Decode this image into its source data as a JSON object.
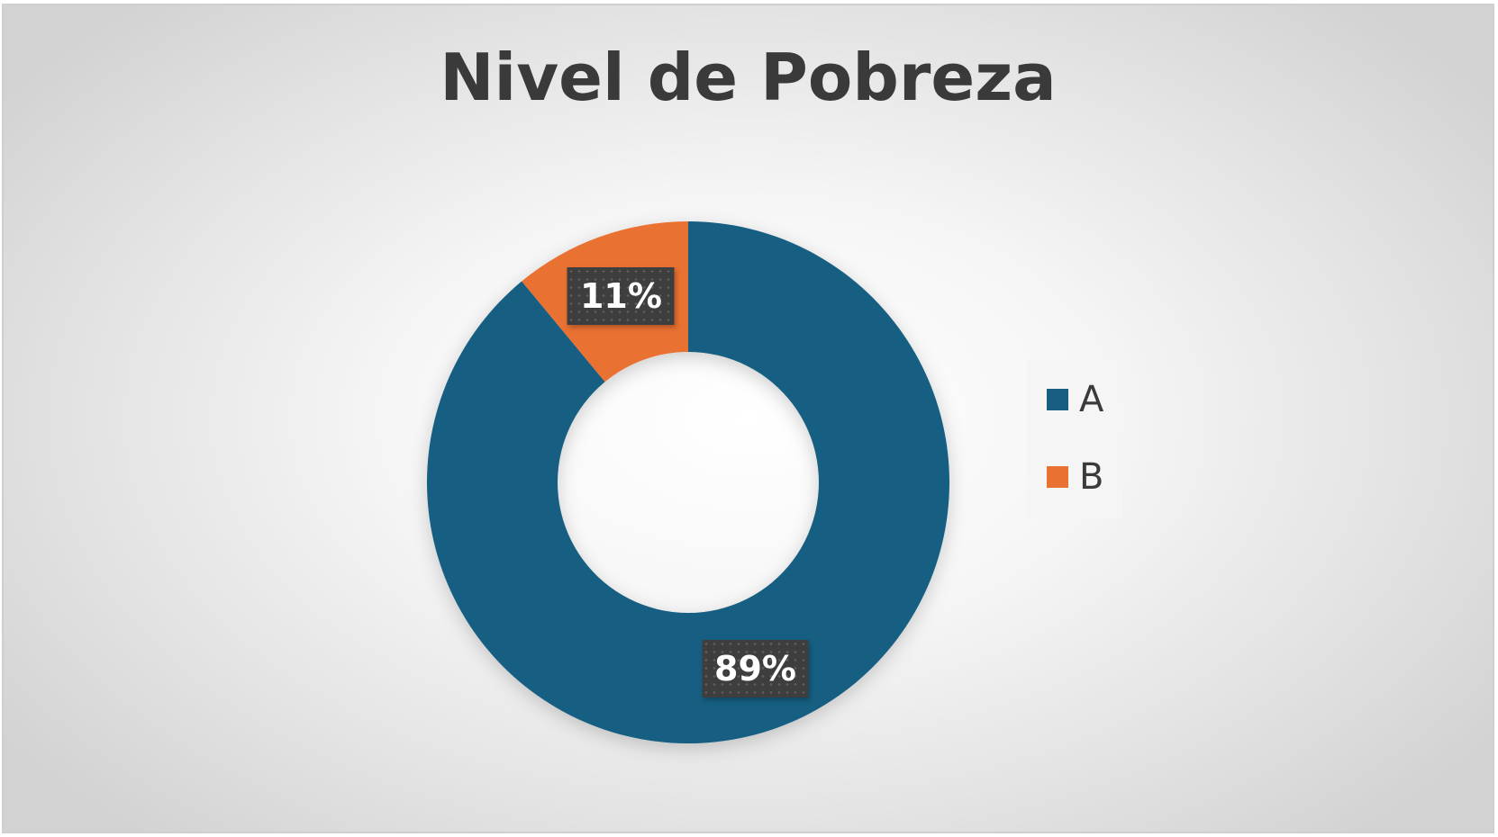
{
  "chart_data": {
    "type": "pie",
    "variant": "donut",
    "title": "Nivel de Pobreza",
    "categories": [
      "A",
      "B"
    ],
    "values": [
      89,
      11
    ],
    "value_labels": [
      "89%",
      "11%"
    ],
    "colors": [
      "#175E82",
      "#E97132"
    ],
    "legend": {
      "position": "right",
      "entries": [
        "A",
        "B"
      ]
    }
  }
}
